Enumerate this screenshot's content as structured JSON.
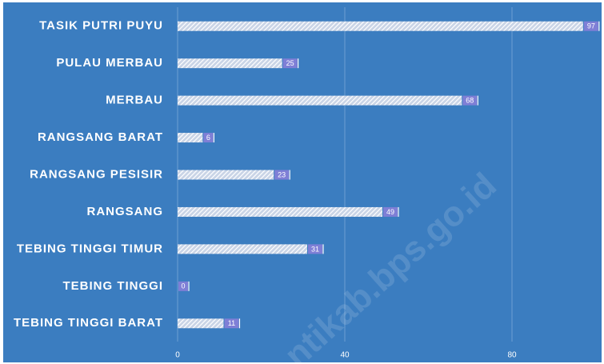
{
  "chart_data": {
    "type": "barh",
    "categories": [
      "TASIK PUTRI PUYU",
      "PULAU MERBAU",
      "MERBAU",
      "RANGSANG BARAT",
      "RANGSANG PESISIR",
      "RANGSANG",
      "TEBING TINGGI TIMUR",
      "TEBING TINGGI",
      "TEBING TINGGI BARAT"
    ],
    "values": [
      97,
      25,
      68,
      6,
      23,
      49,
      31,
      0,
      11
    ],
    "color": "#ffffff",
    "label_color": "#7f7fd6",
    "background": "#3b7dc0",
    "xlim": [
      0,
      100
    ],
    "xticks": [
      0,
      40,
      80
    ],
    "grid": true,
    "watermark": "ntikab.bps.go.id"
  }
}
